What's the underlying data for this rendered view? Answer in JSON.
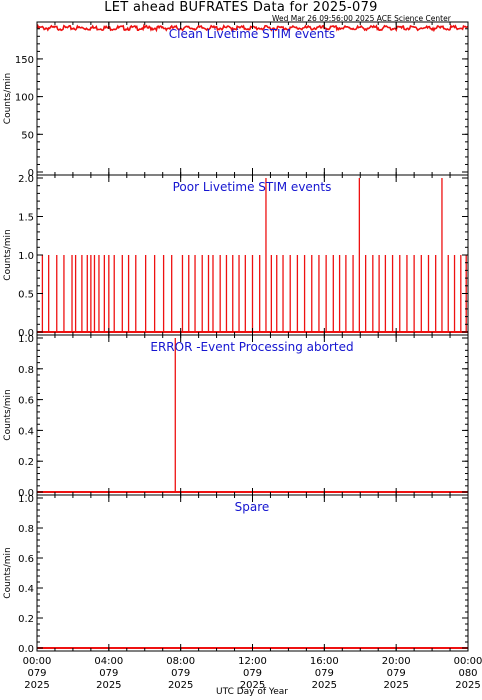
{
  "header": {
    "title": "LET ahead BUFRATES Data for 2025-079",
    "timestamp": "Wed Mar 26 09:56:00 2025 ACE Science Center"
  },
  "colors": {
    "data": "#ee1111",
    "panel_title": "#1515d0",
    "axis": "#000000"
  },
  "chart_data": [
    {
      "type": "line",
      "title": "Clean Livetime STIM events",
      "ylabel": "Counts/min",
      "ylim": [
        0,
        195
      ],
      "yticks": [
        0,
        50,
        100,
        150
      ],
      "baseline": 191,
      "noise": 3,
      "spikes": []
    },
    {
      "type": "line",
      "title": "Poor Livetime STIM events",
      "ylabel": "Counts/min",
      "ylim": [
        0,
        2.0
      ],
      "yticks": [
        0.0,
        0.5,
        1.0,
        1.5,
        2.0
      ],
      "baseline": 0,
      "spikes": [
        [
          0.3,
          1
        ],
        [
          0.65,
          1
        ],
        [
          1.1,
          1
        ],
        [
          1.5,
          1
        ],
        [
          1.95,
          1
        ],
        [
          2.15,
          1
        ],
        [
          2.5,
          1
        ],
        [
          2.8,
          1
        ],
        [
          3.0,
          1
        ],
        [
          3.2,
          1
        ],
        [
          3.45,
          1
        ],
        [
          3.75,
          1
        ],
        [
          4.0,
          1
        ],
        [
          4.3,
          1
        ],
        [
          4.75,
          1
        ],
        [
          5.1,
          1
        ],
        [
          5.5,
          1
        ],
        [
          6.05,
          1
        ],
        [
          6.55,
          1
        ],
        [
          7.05,
          1
        ],
        [
          7.5,
          1
        ],
        [
          8.1,
          1
        ],
        [
          8.45,
          1
        ],
        [
          8.8,
          1
        ],
        [
          9.2,
          1
        ],
        [
          9.55,
          1
        ],
        [
          9.8,
          1
        ],
        [
          10.2,
          1
        ],
        [
          10.55,
          1
        ],
        [
          10.9,
          1
        ],
        [
          11.25,
          1
        ],
        [
          11.6,
          1
        ],
        [
          12.0,
          1
        ],
        [
          12.4,
          1
        ],
        [
          12.75,
          2
        ],
        [
          13.05,
          1
        ],
        [
          13.35,
          1
        ],
        [
          13.7,
          1
        ],
        [
          14.1,
          1
        ],
        [
          14.5,
          1
        ],
        [
          14.9,
          1
        ],
        [
          15.3,
          1
        ],
        [
          15.7,
          1
        ],
        [
          16.1,
          1
        ],
        [
          16.5,
          1
        ],
        [
          16.85,
          1
        ],
        [
          17.2,
          1
        ],
        [
          17.6,
          1
        ],
        [
          17.95,
          2
        ],
        [
          18.3,
          1
        ],
        [
          18.7,
          1
        ],
        [
          19.05,
          1
        ],
        [
          19.4,
          1
        ],
        [
          19.8,
          1
        ],
        [
          20.2,
          1
        ],
        [
          20.6,
          1
        ],
        [
          21.0,
          1
        ],
        [
          21.4,
          1
        ],
        [
          21.8,
          1
        ],
        [
          22.2,
          1
        ],
        [
          22.55,
          2
        ],
        [
          22.9,
          1
        ],
        [
          23.25,
          1
        ],
        [
          23.6,
          1
        ],
        [
          23.9,
          1
        ]
      ]
    },
    {
      "type": "line",
      "title": "ERROR -Event Processing aborted",
      "ylabel": "Counts/min",
      "ylim": [
        0,
        1.0
      ],
      "yticks": [
        0.0,
        0.2,
        0.4,
        0.6,
        0.8,
        1.0
      ],
      "baseline": 0,
      "spikes": [
        [
          7.7,
          1.0
        ]
      ]
    },
    {
      "type": "line",
      "title": "Spare",
      "ylabel": "Counts/min",
      "ylim": [
        0,
        1.0
      ],
      "yticks": [
        0.0,
        0.2,
        0.4,
        0.6,
        0.8,
        1.0
      ],
      "baseline": 0,
      "spikes": []
    }
  ],
  "x_axis": {
    "label": "UTC Day of Year",
    "range_hours": [
      0,
      24
    ],
    "ticks": [
      {
        "hour": 0,
        "time": "00:00",
        "doy": "079",
        "year": "2025"
      },
      {
        "hour": 4,
        "time": "04:00",
        "doy": "079",
        "year": "2025"
      },
      {
        "hour": 8,
        "time": "08:00",
        "doy": "079",
        "year": "2025"
      },
      {
        "hour": 12,
        "time": "12:00",
        "doy": "079",
        "year": "2025"
      },
      {
        "hour": 16,
        "time": "16:00",
        "doy": "079",
        "year": "2025"
      },
      {
        "hour": 20,
        "time": "20:00",
        "doy": "079",
        "year": "2025"
      },
      {
        "hour": 24,
        "time": "00:00",
        "doy": "080",
        "year": "2025"
      }
    ]
  }
}
